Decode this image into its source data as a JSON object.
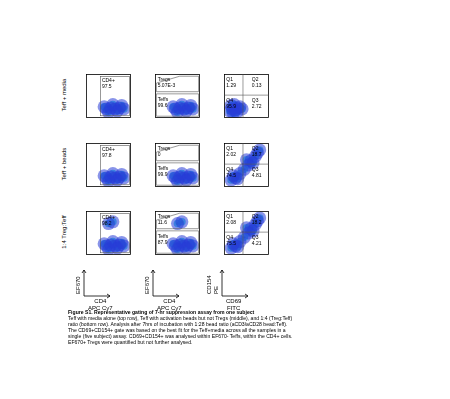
{
  "chart_data": [
    {
      "type": "scatter",
      "xlim": [
        0,
        1
      ],
      "ylim": [
        0,
        1
      ],
      "tick_labels": false,
      "grid": false,
      "x": [
        0.45,
        0.55,
        0.65,
        0.75,
        0.85,
        0.6,
        0.7,
        0.5,
        0.8,
        0.4
      ],
      "y": [
        0.2,
        0.22,
        0.2,
        0.22,
        0.2,
        0.3,
        0.15,
        0.12,
        0.28,
        0.25
      ],
      "gates": [
        {
          "name": "CD4+",
          "value": 97.5
        }
      ]
    },
    {
      "type": "scatter",
      "xlim": [
        0,
        1
      ],
      "ylim": [
        0,
        1
      ],
      "tick_labels": false,
      "grid": false,
      "x": [
        0.45,
        0.55,
        0.65,
        0.75,
        0.85,
        0.6,
        0.7,
        0.5,
        0.8,
        0.4
      ],
      "y": [
        0.2,
        0.22,
        0.2,
        0.22,
        0.2,
        0.3,
        0.15,
        0.12,
        0.28,
        0.25
      ],
      "gates": [
        {
          "name": "Tregs",
          "value": 0.00507,
          "label": "5.07E-3"
        },
        {
          "name": "Teffs",
          "value": 99.6
        }
      ]
    },
    {
      "type": "scatter",
      "xlim": [
        0,
        1
      ],
      "ylim": [
        0,
        1
      ],
      "tick_labels": false,
      "grid": false,
      "x": [
        0.12,
        0.18,
        0.24,
        0.3,
        0.15,
        0.22,
        0.28,
        0.35,
        0.4,
        0.2
      ],
      "y": [
        0.15,
        0.2,
        0.18,
        0.22,
        0.28,
        0.3,
        0.12,
        0.25,
        0.2,
        0.1
      ],
      "gates": [
        {
          "name": "Q1",
          "value": 1.29
        },
        {
          "name": "Q2",
          "value": 0.13
        },
        {
          "name": "Q3",
          "value": 2.72
        },
        {
          "name": "Q4",
          "value": 95.9
        }
      ]
    },
    {
      "type": "scatter",
      "xlim": [
        0,
        1
      ],
      "ylim": [
        0,
        1
      ],
      "tick_labels": false,
      "grid": false,
      "x": [
        0.45,
        0.55,
        0.65,
        0.75,
        0.85,
        0.6,
        0.7,
        0.5,
        0.8,
        0.4
      ],
      "y": [
        0.2,
        0.22,
        0.2,
        0.22,
        0.2,
        0.3,
        0.15,
        0.12,
        0.28,
        0.25
      ],
      "gates": [
        {
          "name": "CD4+",
          "value": 97.8
        }
      ]
    },
    {
      "type": "scatter",
      "xlim": [
        0,
        1
      ],
      "ylim": [
        0,
        1
      ],
      "tick_labels": false,
      "grid": false,
      "x": [
        0.45,
        0.55,
        0.65,
        0.75,
        0.85,
        0.6,
        0.7,
        0.5,
        0.8,
        0.4
      ],
      "y": [
        0.2,
        0.22,
        0.2,
        0.22,
        0.2,
        0.3,
        0.15,
        0.12,
        0.28,
        0.25
      ],
      "gates": [
        {
          "name": "Tregs",
          "value": 0
        },
        {
          "name": "Teffs",
          "value": 99.9
        }
      ]
    },
    {
      "type": "scatter",
      "xlim": [
        0,
        1
      ],
      "ylim": [
        0,
        1
      ],
      "tick_labels": false,
      "grid": false,
      "x": [
        0.15,
        0.25,
        0.35,
        0.45,
        0.55,
        0.6,
        0.7,
        0.75,
        0.3,
        0.2,
        0.65,
        0.8,
        0.5
      ],
      "y": [
        0.15,
        0.2,
        0.3,
        0.4,
        0.5,
        0.6,
        0.7,
        0.78,
        0.18,
        0.25,
        0.55,
        0.85,
        0.62
      ],
      "gates": [
        {
          "name": "Q1",
          "value": 2.02
        },
        {
          "name": "Q2",
          "value": 18.7
        },
        {
          "name": "Q3",
          "value": 4.81
        },
        {
          "name": "Q4",
          "value": 74.5
        }
      ]
    },
    {
      "type": "scatter",
      "xlim": [
        0,
        1
      ],
      "ylim": [
        0,
        1
      ],
      "tick_labels": false,
      "grid": false,
      "x": [
        0.45,
        0.55,
        0.65,
        0.75,
        0.85,
        0.6,
        0.7,
        0.5,
        0.8,
        0.4,
        0.5,
        0.6
      ],
      "y": [
        0.2,
        0.22,
        0.2,
        0.22,
        0.2,
        0.3,
        0.15,
        0.12,
        0.28,
        0.25,
        0.72,
        0.76
      ],
      "gates": [
        {
          "name": "CD4+",
          "value": 98.2
        }
      ]
    },
    {
      "type": "scatter",
      "xlim": [
        0,
        1
      ],
      "ylim": [
        0,
        1
      ],
      "tick_labels": false,
      "grid": false,
      "x": [
        0.45,
        0.55,
        0.65,
        0.75,
        0.85,
        0.6,
        0.7,
        0.5,
        0.8,
        0.4,
        0.5,
        0.6
      ],
      "y": [
        0.2,
        0.22,
        0.2,
        0.22,
        0.2,
        0.3,
        0.15,
        0.12,
        0.28,
        0.25,
        0.72,
        0.76
      ],
      "gates": [
        {
          "name": "Tregs",
          "value": 11.6
        },
        {
          "name": "Teffs",
          "value": 87.9
        }
      ]
    },
    {
      "type": "scatter",
      "xlim": [
        0,
        1
      ],
      "ylim": [
        0,
        1
      ],
      "tick_labels": false,
      "grid": false,
      "x": [
        0.15,
        0.25,
        0.35,
        0.45,
        0.55,
        0.6,
        0.7,
        0.75,
        0.3,
        0.2,
        0.65,
        0.8,
        0.5
      ],
      "y": [
        0.15,
        0.2,
        0.3,
        0.4,
        0.5,
        0.6,
        0.7,
        0.78,
        0.18,
        0.25,
        0.55,
        0.85,
        0.62
      ],
      "gates": [
        {
          "name": "Q1",
          "value": 2.08
        },
        {
          "name": "Q2",
          "value": 18.2
        },
        {
          "name": "Q3",
          "value": 4.21
        },
        {
          "name": "Q4",
          "value": 75.5
        }
      ]
    }
  ],
  "row_labels": [
    "Teff + media",
    "Teff + beads",
    "1:4 Treg:Teff"
  ],
  "column_axes": [
    {
      "y": [
        "EF670"
      ],
      "x": [
        "CD4",
        "APC Cy7"
      ]
    },
    {
      "y": [
        "EF670"
      ],
      "x": [
        "CD4",
        "APC Cy7"
      ]
    },
    {
      "y": [
        "CD154",
        "PE"
      ],
      "x": [
        "CD69",
        "FITC"
      ]
    }
  ],
  "caption": {
    "title": "Figure S1. Representative gating of 7-hr suppression assay from one subject",
    "text": "Teff with media alone (top row), Teff with activation beads but not Tregs (middle), and 1:4 (Treg:Teff) ratio (bottom row). Analysis after 7hrs of incubation with 1:28 bead ratio (aCD3/aCD28 bead:Teff). The CD69+CD154+ gate was based on the best fit for the Teff+media across all the samples in a single (five subject) assay. CD69+CD154+ was analysed within EF670- Teffs, within the CD4+ cells. EF670+ Tregs were quantified but not further analysed."
  }
}
